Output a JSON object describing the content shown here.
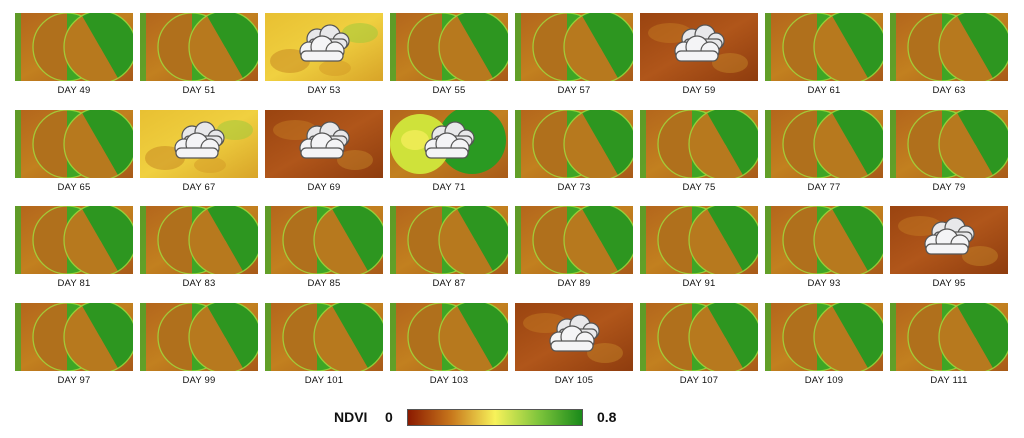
{
  "tiles": [
    {
      "label": "DAY  49",
      "cloud": false,
      "scene": "normal"
    },
    {
      "label": "DAY  51",
      "cloud": false,
      "scene": "normal"
    },
    {
      "label": "DAY  53",
      "cloud": true,
      "scene": "yellow"
    },
    {
      "label": "DAY  55",
      "cloud": false,
      "scene": "normal"
    },
    {
      "label": "DAY  57",
      "cloud": false,
      "scene": "normal"
    },
    {
      "label": "DAY  59",
      "cloud": true,
      "scene": "brown"
    },
    {
      "label": "DAY  61",
      "cloud": false,
      "scene": "normal"
    },
    {
      "label": "DAY  63",
      "cloud": false,
      "scene": "normal"
    },
    {
      "label": "DAY  65",
      "cloud": false,
      "scene": "normal"
    },
    {
      "label": "DAY  67",
      "cloud": true,
      "scene": "yellow"
    },
    {
      "label": "DAY  69",
      "cloud": true,
      "scene": "brown"
    },
    {
      "label": "DAY  71",
      "cloud": true,
      "scene": "mixed"
    },
    {
      "label": "DAY  73",
      "cloud": false,
      "scene": "normal"
    },
    {
      "label": "DAY  75",
      "cloud": false,
      "scene": "normal"
    },
    {
      "label": "DAY  77",
      "cloud": false,
      "scene": "normal"
    },
    {
      "label": "DAY  79",
      "cloud": false,
      "scene": "normal"
    },
    {
      "label": "DAY  81",
      "cloud": false,
      "scene": "normal"
    },
    {
      "label": "DAY  83",
      "cloud": false,
      "scene": "normal"
    },
    {
      "label": "DAY  85",
      "cloud": false,
      "scene": "normal"
    },
    {
      "label": "DAY  87",
      "cloud": false,
      "scene": "normal"
    },
    {
      "label": "DAY  89",
      "cloud": false,
      "scene": "normal"
    },
    {
      "label": "DAY  91",
      "cloud": false,
      "scene": "normal"
    },
    {
      "label": "DAY  93",
      "cloud": false,
      "scene": "normal"
    },
    {
      "label": "DAY  95",
      "cloud": true,
      "scene": "brown"
    },
    {
      "label": "DAY  97",
      "cloud": false,
      "scene": "normal"
    },
    {
      "label": "DAY  99",
      "cloud": false,
      "scene": "normal"
    },
    {
      "label": "DAY  101",
      "cloud": false,
      "scene": "normal"
    },
    {
      "label": "DAY  103",
      "cloud": false,
      "scene": "normal"
    },
    {
      "label": "DAY  105",
      "cloud": true,
      "scene": "brown"
    },
    {
      "label": "DAY  107",
      "cloud": false,
      "scene": "normal"
    },
    {
      "label": "DAY  109",
      "cloud": false,
      "scene": "normal"
    },
    {
      "label": "DAY  111",
      "cloud": false,
      "scene": "normal"
    }
  ],
  "colorbar": {
    "title": "NDVI",
    "min_label": "0",
    "max_label": "0.8",
    "colors": [
      "#8b1a00",
      "#c8781c",
      "#f7f25a",
      "#7fc53c",
      "#1a8a1a"
    ]
  }
}
